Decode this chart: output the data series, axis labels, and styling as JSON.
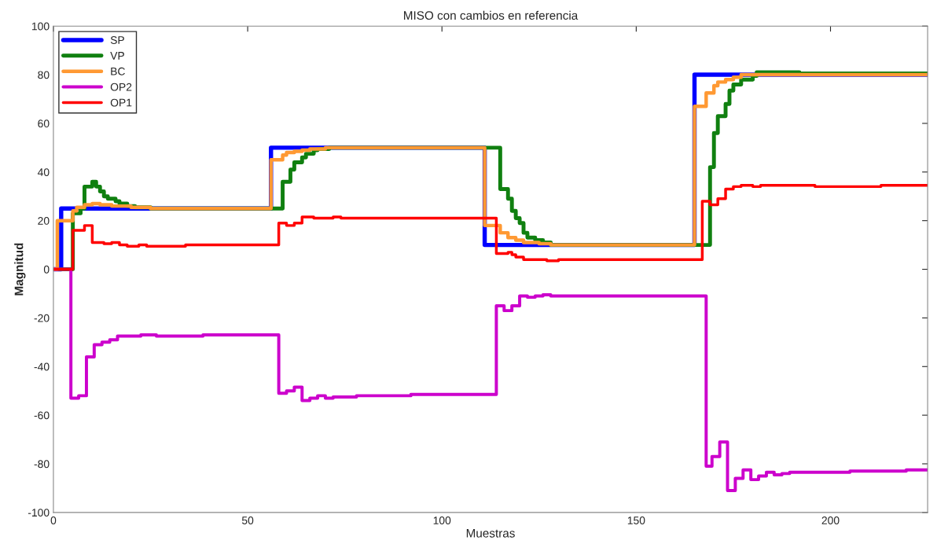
{
  "chart_data": {
    "type": "step",
    "title": "MISO con cambios en referencia",
    "xlabel": "Muestras",
    "ylabel": "Magnitud",
    "xlim": [
      0,
      225
    ],
    "xticks": [
      0,
      50,
      100,
      150,
      200
    ],
    "ylim": [
      -100,
      100
    ],
    "yticks": [
      -100,
      -80,
      -60,
      -40,
      -20,
      0,
      20,
      40,
      60,
      80,
      100
    ],
    "grid": false,
    "legend": "top left",
    "series": [
      {
        "name": "SP",
        "color": "#0000ff",
        "x": [
          0,
          2,
          56,
          111,
          165,
          225
        ],
        "values": [
          0,
          25,
          50,
          10,
          80,
          80
        ]
      },
      {
        "name": "VP",
        "color": "#108010",
        "x": [
          0,
          5,
          7,
          8,
          10,
          11,
          12,
          13,
          14,
          16,
          17,
          19,
          21,
          25,
          59,
          61,
          62,
          64,
          65,
          67,
          68,
          71,
          115,
          117,
          118,
          119,
          120,
          121,
          122,
          124,
          126,
          128,
          169,
          170,
          171,
          173,
          174,
          175,
          177,
          180,
          181,
          192,
          225
        ],
        "values": [
          0,
          23,
          25,
          34,
          36,
          34,
          32,
          30,
          29,
          28,
          27,
          26,
          25.5,
          25,
          36,
          41,
          44,
          46,
          47.5,
          49,
          49.5,
          50,
          33,
          29,
          24,
          21,
          19,
          15,
          13,
          12,
          11,
          10,
          42,
          56,
          63,
          68,
          73.5,
          76,
          78,
          79.5,
          81,
          80.5,
          80.5
        ]
      },
      {
        "name": "BC",
        "color": "#ff9933",
        "x": [
          0,
          1,
          5,
          6,
          8,
          10,
          12,
          15,
          20,
          25,
          56,
          59,
          60,
          62,
          64,
          66,
          70,
          111,
          115,
          117,
          119,
          121,
          125,
          128,
          165,
          168,
          170,
          171,
          173,
          175,
          177,
          225
        ],
        "values": [
          0,
          20,
          24,
          25.5,
          26.5,
          27,
          26.5,
          26,
          25.5,
          25,
          45,
          47,
          48,
          48.5,
          49,
          49.5,
          50,
          18,
          15,
          13,
          12,
          11,
          10.5,
          10,
          67,
          72.5,
          75.5,
          77,
          78,
          79,
          80,
          80
        ]
      },
      {
        "name": "OP2",
        "color": "#cc00cc",
        "x": [
          0,
          4.5,
          6.5,
          8.5,
          10.5,
          12.5,
          14.5,
          16.5,
          22.5,
          26.5,
          38.5,
          58,
          60,
          62,
          64,
          66,
          68,
          70,
          72,
          78,
          92,
          114,
          116,
          118,
          120,
          122,
          124,
          126,
          128,
          168,
          169.5,
          171.5,
          173.5,
          175.5,
          177.5,
          179.5,
          181.5,
          183.5,
          185.5,
          187.5,
          189.5,
          205,
          219.5,
          225
        ],
        "values": [
          0,
          -53,
          -52,
          -36,
          -31,
          -30,
          -29,
          -27.5,
          -27,
          -27.5,
          -27,
          -51,
          -50,
          -48.5,
          -54,
          -53,
          -52,
          -53,
          -52.5,
          -52,
          -51.5,
          -15,
          -17,
          -15,
          -11,
          -11.5,
          -11,
          -10.5,
          -11,
          -81,
          -77,
          -71,
          -91,
          -86,
          -82.5,
          -86.5,
          -85,
          -83.5,
          -84.5,
          -84,
          -83.5,
          -83,
          -82.5,
          -82.5
        ]
      },
      {
        "name": "OP1",
        "color": "#ff0000",
        "x": [
          0,
          5,
          8,
          10,
          13,
          15,
          17,
          19,
          22,
          24,
          34,
          58,
          60,
          62,
          64,
          67,
          72,
          74,
          114,
          117,
          118,
          119,
          121,
          127,
          130,
          167,
          169,
          171,
          173,
          175,
          177,
          180,
          182,
          196,
          200,
          213,
          225
        ],
        "values": [
          0,
          16,
          18,
          11,
          10.5,
          11,
          10,
          9.5,
          10,
          9.5,
          10,
          19,
          18,
          19,
          21.5,
          21,
          21.5,
          21,
          6.5,
          7,
          6,
          5,
          4,
          3.5,
          4,
          28,
          26.5,
          29,
          33,
          34,
          34.5,
          34,
          34.5,
          34,
          34,
          34.5,
          34.5
        ]
      }
    ]
  }
}
